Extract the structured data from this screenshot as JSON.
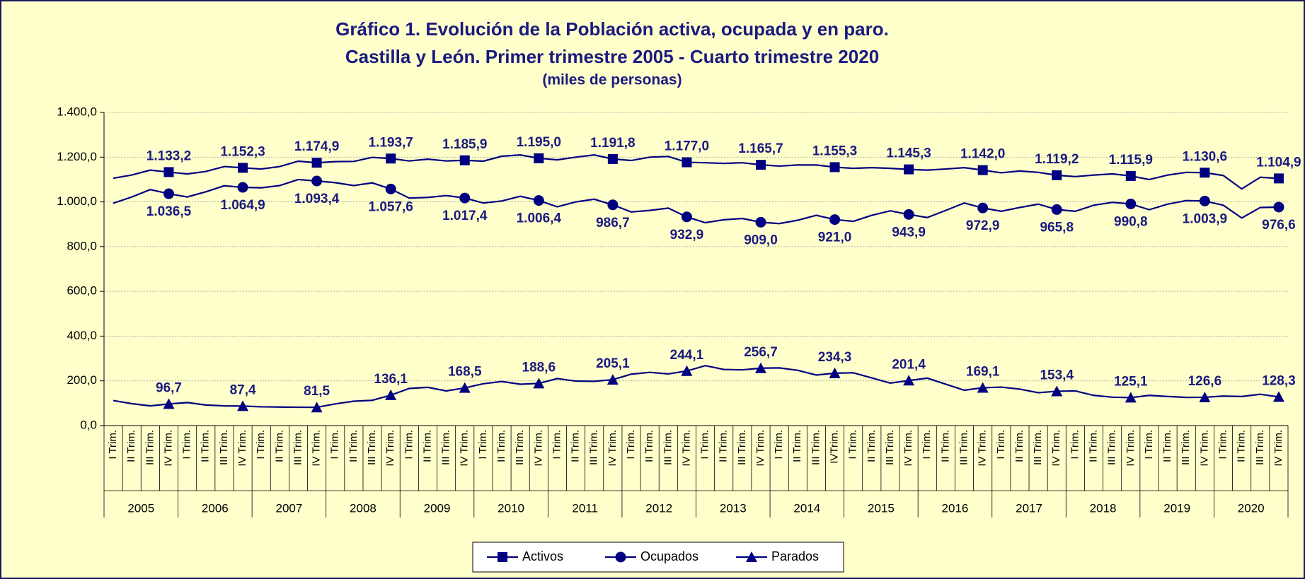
{
  "chart_data": {
    "type": "line",
    "title": "Gráfico 1. Evolución de la Población activa, ocupada y en paro.",
    "subtitle": "Castilla y León. Primer trimestre 2005 - Cuarto trimestre 2020",
    "unit_note": "(miles de personas)",
    "categories": [
      "I Trim.",
      "II Trim.",
      "III Trim.",
      "IV Trim.",
      "I Trim.",
      "II Trim.",
      "III Trim.",
      "IV Trim.",
      "I Trim.",
      "II Trim.",
      "III Trim.",
      "IV Trim.",
      "I Trim.",
      "II Trim.",
      "III Trim.",
      "IV Trim.",
      "I Trim.",
      "II Trim.",
      "III Trim.",
      "IV Trim.",
      "I Trim.",
      "II Trim.",
      "III Trim.",
      "IV Trim.",
      "I Trim.",
      "II Trim.",
      "III Trim.",
      "IV Trim.",
      "I Trim.",
      "II Trim.",
      "III Trim.",
      "IV Trim.",
      "I Trim.",
      "II Trim.",
      "III Trim.",
      "IV Trim.",
      "I Trim.",
      "II Trim.",
      "III Trim.",
      "IVTrim.",
      "I Trim.",
      "II Trim.",
      "III Trim.",
      "IV Trim.",
      "I Trim.",
      "II Trim.",
      "III Trim.",
      "IV Trim.",
      "I Trim.",
      "II Trim.",
      "III Trim.",
      "IV Trim.",
      "I Trim.",
      "II Trim.",
      "III Trim.",
      "IV Trim.",
      "I Trim.",
      "II Trim.",
      "III Trim.",
      "IV Trim.",
      "I Trim.",
      "II Trim.",
      "III Trim.",
      "IV Trim."
    ],
    "groups": [
      "2005",
      "2006",
      "2007",
      "2008",
      "2009",
      "2010",
      "2011",
      "2012",
      "2013",
      "2014",
      "2015",
      "2016",
      "2017",
      "2018",
      "2019",
      "2020"
    ],
    "ylim": [
      0,
      1400
    ],
    "yticks": [
      {
        "value": 0,
        "label": "0,0"
      },
      {
        "value": 200,
        "label": "200,0"
      },
      {
        "value": 400,
        "label": "400,0"
      },
      {
        "value": 600,
        "label": "600,0"
      },
      {
        "value": 800,
        "label": "800,0"
      },
      {
        "value": 1000,
        "label": "1.000,0"
      },
      {
        "value": 1200,
        "label": "1.200,0"
      },
      {
        "value": 1400,
        "label": "1.400,0"
      }
    ],
    "grid": true,
    "legend": "bottom",
    "series": [
      {
        "name": "Activos",
        "color": "#000080",
        "marker": "square",
        "values": [
          1106,
          1120,
          1142,
          1133.2,
          1125,
          1136,
          1158,
          1152.3,
          1147,
          1158,
          1182,
          1174.9,
          1180,
          1181,
          1199,
          1193.7,
          1183,
          1191,
          1183,
          1185.9,
          1182,
          1204,
          1210,
          1195.0,
          1188,
          1200,
          1210,
          1191.8,
          1185,
          1200,
          1203,
          1177.0,
          1175,
          1172,
          1175,
          1165.7,
          1160,
          1165,
          1165,
          1155.3,
          1150,
          1153,
          1150,
          1145.3,
          1142,
          1147,
          1153,
          1142.0,
          1130,
          1138,
          1132,
          1119.2,
          1113,
          1120,
          1125,
          1115.9,
          1100,
          1120,
          1132,
          1130.6,
          1118,
          1058,
          1110,
          1104.9
        ],
        "value_labels": [
          null,
          null,
          null,
          "1.133,2",
          null,
          null,
          null,
          "1.152,3",
          null,
          null,
          null,
          "1.174,9",
          null,
          null,
          null,
          "1.193,7",
          null,
          null,
          null,
          "1.185,9",
          null,
          null,
          null,
          "1.195,0",
          null,
          null,
          null,
          "1.191,8",
          null,
          null,
          null,
          "1.177,0",
          null,
          null,
          null,
          "1.165,7",
          null,
          null,
          null,
          "1.155,3",
          null,
          null,
          null,
          "1.145,3",
          null,
          null,
          null,
          "1.142,0",
          null,
          null,
          null,
          "1.119,2",
          null,
          null,
          null,
          "1.115,9",
          null,
          null,
          null,
          "1.130,6",
          null,
          null,
          null,
          "1.104,9"
        ]
      },
      {
        "name": "Ocupados",
        "color": "#000080",
        "marker": "circle",
        "values": [
          994,
          1022,
          1055,
          1036.5,
          1022,
          1045,
          1072,
          1064.9,
          1063,
          1073,
          1100,
          1093.4,
          1086,
          1073,
          1085,
          1057.6,
          1017,
          1020,
          1028,
          1017.4,
          995,
          1004,
          1025,
          1006.4,
          978,
          1000,
          1012,
          986.7,
          955,
          962,
          972,
          932.9,
          907,
          920,
          926,
          909.0,
          903,
          918,
          940,
          921.0,
          913,
          940,
          960,
          943.9,
          930,
          962,
          995,
          972.9,
          958,
          975,
          990,
          965.8,
          958,
          985,
          998,
          990.8,
          965,
          990,
          1006,
          1003.9,
          985,
          928,
          975,
          976.6
        ],
        "value_labels": [
          null,
          null,
          null,
          "1.036,5",
          null,
          null,
          null,
          "1.064,9",
          null,
          null,
          null,
          "1.093,4",
          null,
          null,
          null,
          "1.057,6",
          null,
          null,
          null,
          "1.017,4",
          null,
          null,
          null,
          "1.006,4",
          null,
          null,
          null,
          "986,7",
          null,
          null,
          null,
          "932,9",
          null,
          null,
          null,
          "909,0",
          null,
          null,
          null,
          "921,0",
          null,
          null,
          null,
          "943,9",
          null,
          null,
          null,
          "972,9",
          null,
          null,
          null,
          "965,8",
          null,
          null,
          null,
          "990,8",
          null,
          null,
          null,
          "1.003,9",
          null,
          null,
          null,
          "976,6"
        ]
      },
      {
        "name": "Parados",
        "color": "#000080",
        "marker": "triangle",
        "values": [
          112,
          98,
          88,
          96.7,
          103,
          92,
          88,
          87.4,
          84,
          83,
          82,
          81.5,
          97,
          109,
          113,
          136.1,
          166,
          171,
          155,
          168.5,
          187,
          197,
          185,
          188.6,
          210,
          199,
          198,
          205.1,
          230,
          238,
          231,
          244.1,
          268,
          251,
          249,
          256.7,
          258,
          247,
          226,
          234.3,
          236,
          213,
          190,
          201.4,
          212,
          185,
          158,
          169.1,
          172,
          163,
          147,
          153.4,
          155,
          135,
          127,
          125.1,
          135,
          130,
          126,
          126.6,
          132,
          130,
          140,
          128.3
        ],
        "value_labels": [
          null,
          null,
          null,
          "96,7",
          null,
          null,
          null,
          "87,4",
          null,
          null,
          null,
          "81,5",
          null,
          null,
          null,
          "136,1",
          null,
          null,
          null,
          "168,5",
          null,
          null,
          null,
          "188,6",
          null,
          null,
          null,
          "205,1",
          null,
          null,
          null,
          "244,1",
          null,
          null,
          null,
          "256,7",
          null,
          null,
          null,
          "234,3",
          null,
          null,
          null,
          "201,4",
          null,
          null,
          null,
          "169,1",
          null,
          null,
          null,
          "153,4",
          null,
          null,
          null,
          "125,1",
          null,
          null,
          null,
          "126,6",
          null,
          null,
          null,
          "128,3"
        ]
      }
    ]
  }
}
